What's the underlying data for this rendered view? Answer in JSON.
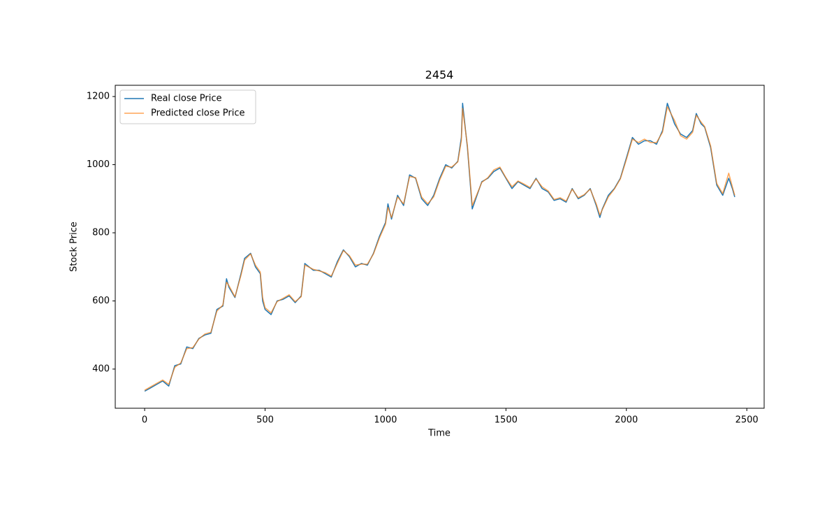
{
  "chart_data": {
    "type": "line",
    "title": "2454",
    "x_label": "Time",
    "y_label": "Stock Price",
    "x": [
      0,
      25,
      50,
      75,
      100,
      125,
      150,
      175,
      200,
      225,
      250,
      275,
      300,
      325,
      340,
      350,
      375,
      400,
      415,
      440,
      460,
      480,
      490,
      500,
      525,
      550,
      575,
      600,
      625,
      650,
      665,
      700,
      725,
      750,
      775,
      800,
      825,
      850,
      875,
      900,
      925,
      950,
      975,
      1000,
      1010,
      1025,
      1050,
      1075,
      1100,
      1125,
      1150,
      1175,
      1200,
      1225,
      1250,
      1275,
      1300,
      1315,
      1320,
      1340,
      1360,
      1375,
      1400,
      1425,
      1450,
      1475,
      1500,
      1525,
      1550,
      1575,
      1600,
      1625,
      1650,
      1675,
      1700,
      1725,
      1750,
      1775,
      1800,
      1825,
      1850,
      1875,
      1890,
      1900,
      1925,
      1950,
      1975,
      2000,
      2025,
      2050,
      2075,
      2100,
      2125,
      2150,
      2170,
      2200,
      2225,
      2250,
      2275,
      2290,
      2310,
      2325,
      2350,
      2375,
      2400,
      2425,
      2440,
      2450
    ],
    "series": [
      {
        "name": "Real close Price",
        "color": "#1f77b4",
        "values": [
          335,
          345,
          355,
          365,
          350,
          410,
          415,
          465,
          460,
          490,
          500,
          505,
          575,
          585,
          665,
          640,
          610,
          680,
          725,
          740,
          700,
          680,
          600,
          575,
          560,
          600,
          605,
          615,
          595,
          615,
          710,
          690,
          690,
          680,
          670,
          715,
          750,
          730,
          700,
          710,
          705,
          740,
          790,
          830,
          885,
          840,
          910,
          880,
          970,
          960,
          900,
          880,
          910,
          960,
          1000,
          990,
          1010,
          1080,
          1180,
          1050,
          870,
          900,
          950,
          960,
          980,
          990,
          960,
          930,
          950,
          940,
          930,
          960,
          930,
          920,
          895,
          900,
          890,
          930,
          900,
          910,
          930,
          880,
          845,
          870,
          910,
          930,
          960,
          1020,
          1080,
          1060,
          1070,
          1070,
          1060,
          1100,
          1180,
          1120,
          1090,
          1080,
          1100,
          1150,
          1120,
          1110,
          1050,
          940,
          910,
          960,
          930,
          905
        ]
      },
      {
        "name": "Predicted close Price",
        "color": "#ff7f0e",
        "values": [
          338,
          348,
          358,
          368,
          355,
          405,
          418,
          460,
          463,
          488,
          503,
          508,
          570,
          588,
          655,
          645,
          612,
          675,
          720,
          738,
          705,
          685,
          610,
          580,
          565,
          598,
          608,
          618,
          598,
          612,
          705,
          693,
          688,
          683,
          673,
          710,
          748,
          733,
          705,
          708,
          708,
          738,
          785,
          825,
          875,
          845,
          905,
          885,
          965,
          962,
          905,
          885,
          905,
          955,
          995,
          993,
          1008,
          1070,
          1165,
          1055,
          880,
          905,
          948,
          962,
          985,
          993,
          962,
          935,
          952,
          943,
          933,
          958,
          935,
          923,
          898,
          903,
          893,
          928,
          903,
          912,
          928,
          885,
          852,
          868,
          905,
          928,
          958,
          1015,
          1075,
          1065,
          1075,
          1065,
          1065,
          1095,
          1170,
          1130,
          1085,
          1075,
          1095,
          1145,
          1125,
          1112,
          1055,
          945,
          915,
          975,
          935,
          910
        ]
      }
    ],
    "xlim": [
      -122,
      2572
    ],
    "ylim": [
      285,
      1233
    ],
    "xticks": [
      0,
      500,
      1000,
      1500,
      2000,
      2500
    ],
    "yticks": [
      400,
      600,
      800,
      1000,
      1200
    ],
    "legend": "upper left",
    "grid": false
  }
}
